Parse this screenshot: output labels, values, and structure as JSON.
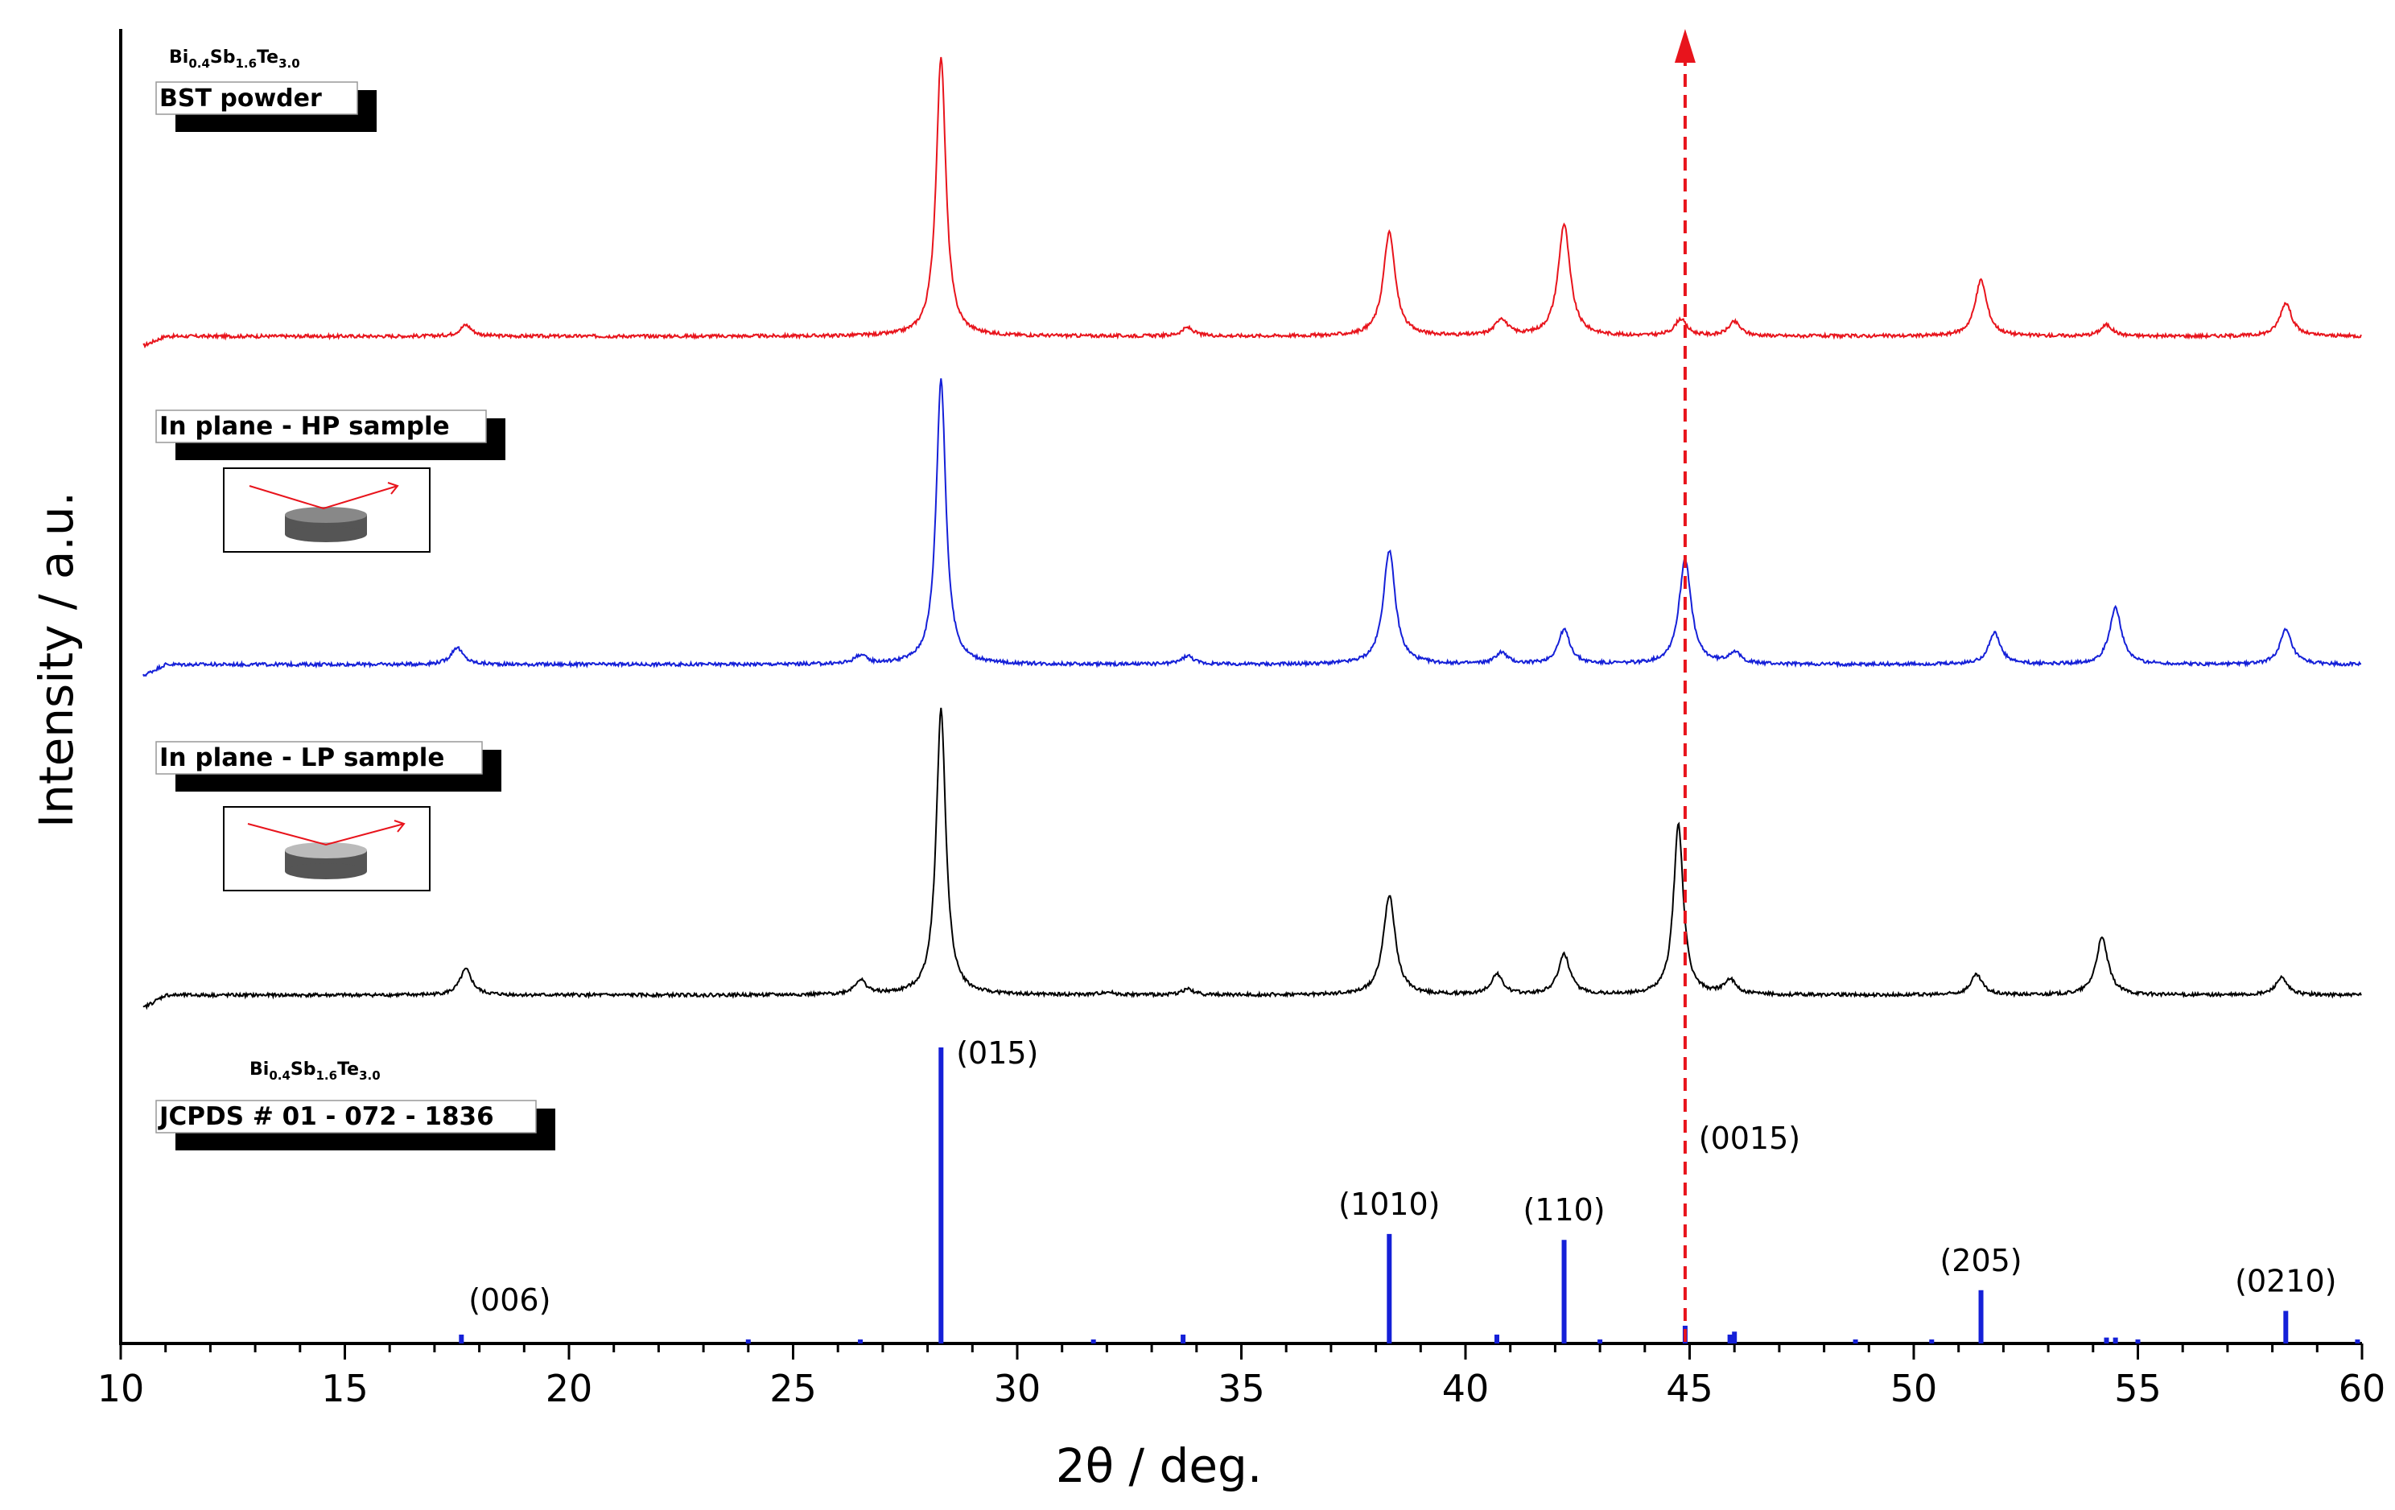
{
  "chart_data": {
    "type": "line",
    "xlabel": "2θ / deg.",
    "ylabel": "Intensity / a.u.",
    "xlim": [
      10,
      60
    ],
    "xticks": [
      "10",
      "15",
      "20",
      "25",
      "30",
      "35",
      "40",
      "45",
      "50",
      "55",
      "60"
    ],
    "grid": false,
    "series": [
      {
        "name": "BST powder",
        "formula": "Bi0.4Sb1.6Te3.0",
        "color": "#e8141c",
        "peaks": [
          {
            "x": 17.7,
            "h": 0.04
          },
          {
            "x": 28.3,
            "h": 1.0
          },
          {
            "x": 33.8,
            "h": 0.03
          },
          {
            "x": 38.3,
            "h": 0.37
          },
          {
            "x": 40.8,
            "h": 0.06
          },
          {
            "x": 42.2,
            "h": 0.4
          },
          {
            "x": 44.8,
            "h": 0.06
          },
          {
            "x": 46.0,
            "h": 0.05
          },
          {
            "x": 51.5,
            "h": 0.2
          },
          {
            "x": 54.3,
            "h": 0.04
          },
          {
            "x": 58.3,
            "h": 0.12
          }
        ]
      },
      {
        "name": "In plane - HP sample",
        "color": "#1520d8",
        "peaks": [
          {
            "x": 17.5,
            "h": 0.06
          },
          {
            "x": 26.5,
            "h": 0.03
          },
          {
            "x": 28.3,
            "h": 1.0
          },
          {
            "x": 33.8,
            "h": 0.03
          },
          {
            "x": 38.3,
            "h": 0.4
          },
          {
            "x": 40.8,
            "h": 0.04
          },
          {
            "x": 42.2,
            "h": 0.12
          },
          {
            "x": 44.9,
            "h": 0.37
          },
          {
            "x": 46.0,
            "h": 0.04
          },
          {
            "x": 51.8,
            "h": 0.11
          },
          {
            "x": 54.5,
            "h": 0.2
          },
          {
            "x": 58.3,
            "h": 0.12
          }
        ]
      },
      {
        "name": "In plane - LP sample",
        "color": "#000000",
        "peaks": [
          {
            "x": 17.7,
            "h": 0.09
          },
          {
            "x": 26.5,
            "h": 0.05
          },
          {
            "x": 28.3,
            "h": 1.0
          },
          {
            "x": 32.0,
            "h": 0.01
          },
          {
            "x": 33.8,
            "h": 0.02
          },
          {
            "x": 38.3,
            "h": 0.35
          },
          {
            "x": 40.7,
            "h": 0.07
          },
          {
            "x": 42.2,
            "h": 0.14
          },
          {
            "x": 44.75,
            "h": 0.6
          },
          {
            "x": 45.9,
            "h": 0.05
          },
          {
            "x": 51.4,
            "h": 0.07
          },
          {
            "x": 54.2,
            "h": 0.2
          },
          {
            "x": 58.2,
            "h": 0.06
          }
        ]
      }
    ],
    "reference": {
      "label": "JCPDS # 01 - 072 - 1836",
      "formula": "Bi0.4Sb1.6Te3.0",
      "color": "#1520d8",
      "sticks": [
        {
          "x": 17.6,
          "h": 0.03,
          "label": "(006)"
        },
        {
          "x": 24.0,
          "h": 0.01,
          "label": ""
        },
        {
          "x": 26.5,
          "h": 0.01,
          "label": ""
        },
        {
          "x": 28.3,
          "h": 1.0,
          "label": "(015)"
        },
        {
          "x": 31.7,
          "h": 0.01,
          "label": ""
        },
        {
          "x": 33.7,
          "h": 0.03,
          "label": ""
        },
        {
          "x": 38.3,
          "h": 0.37,
          "label": "(1010)"
        },
        {
          "x": 40.7,
          "h": 0.03,
          "label": ""
        },
        {
          "x": 42.2,
          "h": 0.35,
          "label": "(110)"
        },
        {
          "x": 43.0,
          "h": 0.01,
          "label": ""
        },
        {
          "x": 44.9,
          "h": 0.06,
          "label": "(0015)"
        },
        {
          "x": 45.9,
          "h": 0.03,
          "label": ""
        },
        {
          "x": 46.0,
          "h": 0.04,
          "label": ""
        },
        {
          "x": 48.7,
          "h": 0.01,
          "label": ""
        },
        {
          "x": 50.4,
          "h": 0.01,
          "label": ""
        },
        {
          "x": 51.5,
          "h": 0.18,
          "label": "(205)"
        },
        {
          "x": 54.3,
          "h": 0.02,
          "label": ""
        },
        {
          "x": 54.5,
          "h": 0.02,
          "label": ""
        },
        {
          "x": 55.0,
          "h": 0.01,
          "label": ""
        },
        {
          "x": 58.3,
          "h": 0.11,
          "label": "(0210)"
        },
        {
          "x": 59.9,
          "h": 0.01,
          "label": ""
        }
      ]
    },
    "marker_line": {
      "x": 44.9,
      "color": "#e8141c",
      "style": "dashed-arrow"
    }
  }
}
